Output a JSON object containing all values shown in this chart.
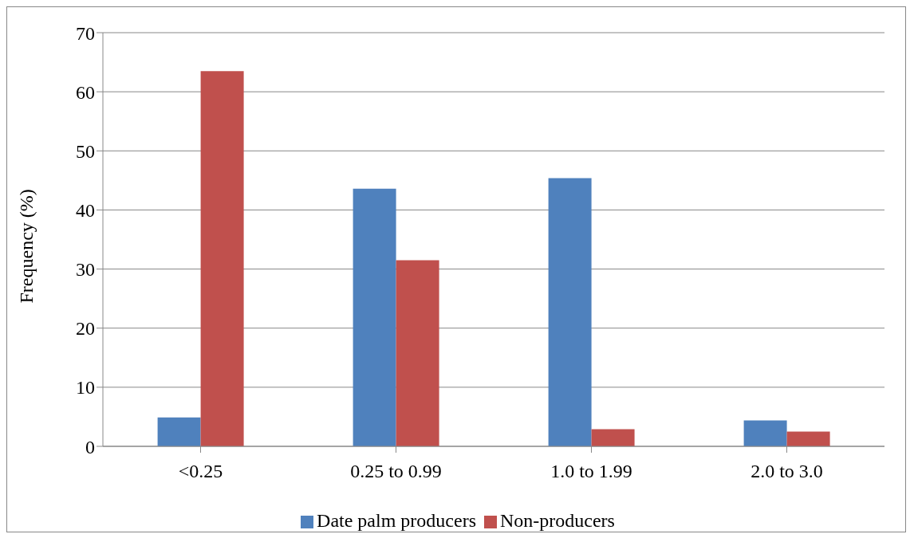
{
  "chart_data": {
    "type": "bar",
    "ylabel": "Frequency  (%)",
    "categories": [
      "<0.25",
      "0.25 to 0.99",
      "1.0 to 1.99",
      "2.0 to 3.0"
    ],
    "series": [
      {
        "name": "Date palm producers",
        "color": "#4f81bd",
        "values": [
          4.9,
          43.6,
          45.4,
          4.4
        ]
      },
      {
        "name": "Non-producers",
        "color": "#c0504d",
        "values": [
          63.5,
          31.5,
          2.9,
          2.5
        ]
      }
    ],
    "ylim": [
      0,
      70
    ],
    "yticks": [
      0,
      10,
      20,
      30,
      40,
      50,
      60,
      70
    ],
    "grid": "y",
    "legend": "bottom"
  }
}
